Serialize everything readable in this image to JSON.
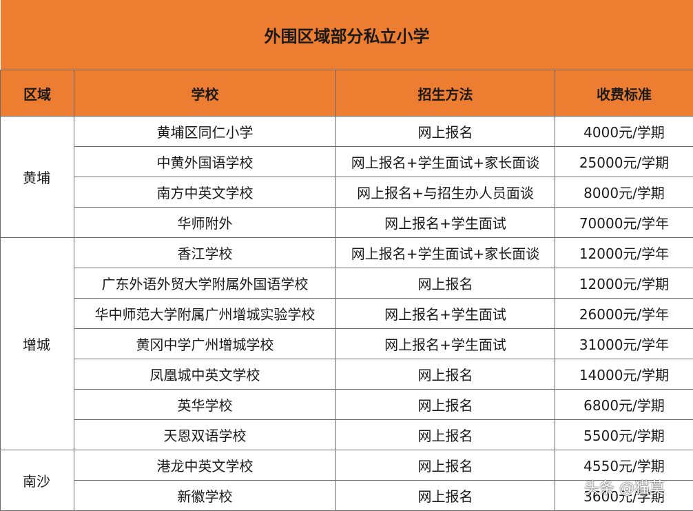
{
  "title": "外围区域部分私立小学",
  "headers": {
    "region": "区域",
    "school": "学校",
    "method": "招生方法",
    "fee": "收费标准"
  },
  "groups": [
    {
      "region": "黄埔",
      "rows": [
        {
          "school": "黄埔区同仁小学",
          "method": "网上报名",
          "fee": "4000元/学期"
        },
        {
          "school": "中黄外国语学校",
          "method": "网上报名+学生面试+家长面谈",
          "fee": "25000元/学期"
        },
        {
          "school": "南方中英文学校",
          "method": "网上报名+与招生办人员面谈",
          "fee": "8000元/学期"
        },
        {
          "school": "华师附外",
          "method": "网上报名+学生面试",
          "fee": "70000元/学年"
        }
      ]
    },
    {
      "region": "增城",
      "rows": [
        {
          "school": "香江学校",
          "method": "网上报名+学生面试+家长面谈",
          "fee": "12000元/学年"
        },
        {
          "school": "广东外语外贸大学附属外国语学校",
          "method": "网上报名",
          "fee": "12000元/学期"
        },
        {
          "school": "华中师范大学附属广州增城实验学校",
          "method": "网上报名+学生面试",
          "fee": "26000元/学年"
        },
        {
          "school": "黄冈中学广州增城学校",
          "method": "网上报名+学生面试",
          "fee": "31000元/学年"
        },
        {
          "school": "凤凰城中英文学校",
          "method": "网上报名",
          "fee": "14000元/学期"
        },
        {
          "school": "英华学校",
          "method": "网上报名",
          "fee": "6800元/学期"
        },
        {
          "school": "天恩双语学校",
          "method": "网上报名",
          "fee": "5500元/学期"
        }
      ]
    },
    {
      "region": "南沙",
      "rows": [
        {
          "school": "港龙中英文学校",
          "method": "网上报名",
          "fee": "4550元/学期"
        },
        {
          "school": "新徽学校",
          "method": "网上报名",
          "fee": "3600元/学期"
        }
      ]
    }
  ],
  "watermark": "头条 @猫莫",
  "colors": {
    "header_bg": "#ed7d31",
    "border": "#6b6b6b"
  }
}
